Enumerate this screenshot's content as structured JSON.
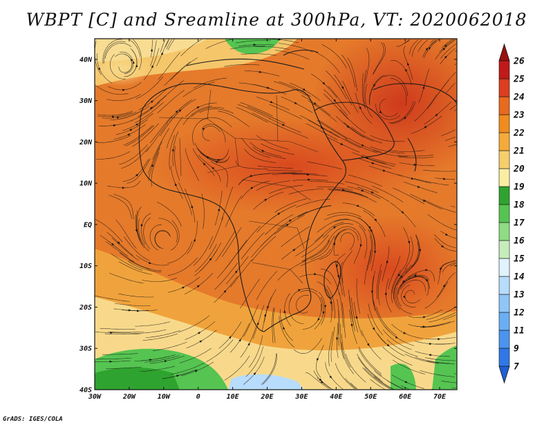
{
  "title": "WBPT [C] and Sreamline at 300hPa, VT: 2020062018",
  "credit": "GrADS: IGES/COLA",
  "map": {
    "lon_range": [
      -30,
      75
    ],
    "lat_range": [
      -40,
      45
    ],
    "lat_labels": [
      {
        "lat": 40,
        "text": "40N"
      },
      {
        "lat": 30,
        "text": "30N"
      },
      {
        "lat": 20,
        "text": "20N"
      },
      {
        "lat": 10,
        "text": "10N"
      },
      {
        "lat": 0,
        "text": "EQ"
      },
      {
        "lat": -10,
        "text": "10S"
      },
      {
        "lat": -20,
        "text": "20S"
      },
      {
        "lat": -30,
        "text": "30S"
      },
      {
        "lat": -40,
        "text": "40S"
      }
    ],
    "lon_labels": [
      {
        "lon": -30,
        "text": "30W"
      },
      {
        "lon": -20,
        "text": "20W"
      },
      {
        "lon": -10,
        "text": "10W"
      },
      {
        "lon": 0,
        "text": "0"
      },
      {
        "lon": 10,
        "text": "10E"
      },
      {
        "lon": 20,
        "text": "20E"
      },
      {
        "lon": 30,
        "text": "30E"
      },
      {
        "lon": 40,
        "text": "40E"
      },
      {
        "lon": 50,
        "text": "50E"
      },
      {
        "lon": 60,
        "text": "60E"
      },
      {
        "lon": 70,
        "text": "70E"
      }
    ]
  },
  "colorbar": {
    "levels": [
      "7",
      "9",
      "11",
      "12",
      "13",
      "14",
      "15",
      "16",
      "17",
      "18",
      "19",
      "20",
      "21",
      "22",
      "23",
      "24",
      "25",
      "26"
    ],
    "colors": [
      "#1f5fd6",
      "#2f78e6",
      "#4a94ef",
      "#6aaef4",
      "#8fc6f8",
      "#b8dcfb",
      "#e0f3fd",
      "#c7ecbc",
      "#8fdc85",
      "#55c451",
      "#2fa32f",
      "#fbeea2",
      "#f6cf6c",
      "#f4ab39",
      "#f08c1e",
      "#e86a1f",
      "#dc3e1f",
      "#c01a1a",
      "#9a0f0f"
    ]
  }
}
